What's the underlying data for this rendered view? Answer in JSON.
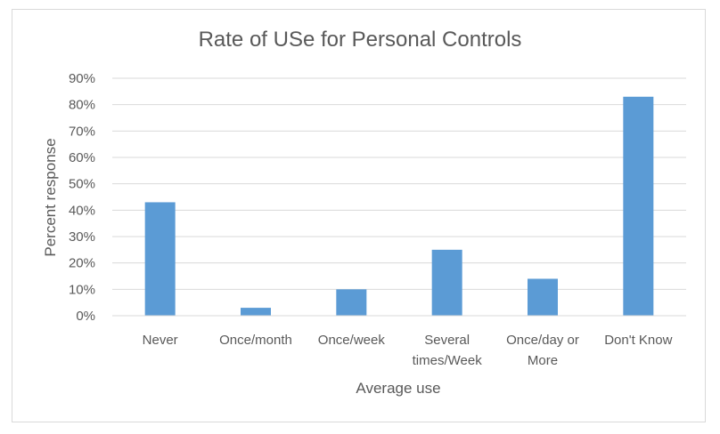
{
  "chart_data": {
    "type": "bar",
    "title": "Rate of USe for Personal Controls",
    "xlabel": "Average use",
    "ylabel": "Percent response",
    "categories": [
      "Never",
      "Once/month",
      "Once/week",
      "Several times/Week",
      "Once/day or More",
      "Don't Know"
    ],
    "category_lines": [
      [
        "Never"
      ],
      [
        "Once/month"
      ],
      [
        "Once/week"
      ],
      [
        "Several",
        "times/Week"
      ],
      [
        "Once/day or",
        "More"
      ],
      [
        "Don't Know"
      ]
    ],
    "values": [
      43,
      3,
      10,
      25,
      14,
      83
    ],
    "ylim": [
      0,
      90
    ],
    "yticks": [
      0,
      10,
      20,
      30,
      40,
      50,
      60,
      70,
      80,
      90
    ],
    "ytick_labels": [
      "0%",
      "10%",
      "20%",
      "30%",
      "40%",
      "50%",
      "60%",
      "70%",
      "80%",
      "90%"
    ],
    "grid": true,
    "legend": "none",
    "bar_color": "#5b9bd5"
  }
}
